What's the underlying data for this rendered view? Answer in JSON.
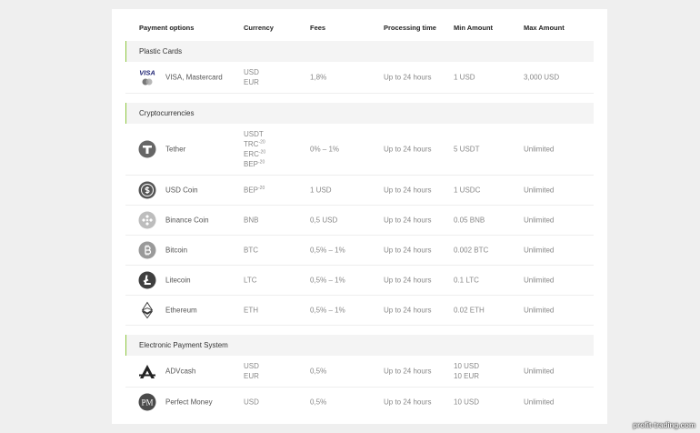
{
  "columns": [
    "Payment options",
    "Currency",
    "Fees",
    "Processing time",
    "Min Amount",
    "Max Amount"
  ],
  "sections": [
    {
      "title": "Plastic Cards",
      "rows": [
        {
          "logo_text": "VISA",
          "name": "VISA, Mastercard",
          "currency": [
            "USD",
            "EUR"
          ],
          "fees": "1,8%",
          "processing": "Up to 24 hours",
          "min": [
            "1 USD"
          ],
          "max": "3,000 USD"
        }
      ]
    },
    {
      "title": "Cryptocurrencies",
      "rows": [
        {
          "name": "Tether",
          "currency": [
            "USDT",
            {
              "code": "TRC",
              "sup": "-20"
            },
            {
              "code": "ERC",
              "sup": "-20"
            },
            {
              "code": "BEP",
              "sup": "-20"
            }
          ],
          "fees": "0% – 1%",
          "processing": "Up to 24 hours",
          "min": [
            "5 USDT"
          ],
          "max": "Unlimited"
        },
        {
          "name": "USD Coin",
          "currency": [
            {
              "code": "BEP",
              "sup": "-20"
            }
          ],
          "fees": "1 USD",
          "processing": "Up to 24 hours",
          "min": [
            "1 USDC"
          ],
          "max": "Unlimited"
        },
        {
          "name": "Binance Coin",
          "currency": [
            "BNB"
          ],
          "fees": "0,5 USD",
          "processing": "Up to 24 hours",
          "min": [
            "0.05 BNB"
          ],
          "max": "Unlimited"
        },
        {
          "name": "Bitcoin",
          "currency": [
            "BTC"
          ],
          "fees": "0,5% – 1%",
          "processing": "Up to 24 hours",
          "min": [
            "0.002 BTC"
          ],
          "max": "Unlimited"
        },
        {
          "name": "Litecoin",
          "currency": [
            "LTC"
          ],
          "fees": "0,5% – 1%",
          "processing": "Up to 24 hours",
          "min": [
            "0.1 LTC"
          ],
          "max": "Unlimited"
        },
        {
          "name": "Ethereum",
          "currency": [
            "ETH"
          ],
          "fees": "0,5% – 1%",
          "processing": "Up to 24 hours",
          "min": [
            "0.02 ETH"
          ],
          "max": "Unlimited"
        }
      ]
    },
    {
      "title": "Electronic Payment System",
      "rows": [
        {
          "name": "ADVcash",
          "currency": [
            "USD",
            "EUR"
          ],
          "fees": "0,5%",
          "processing": "Up to 24 hours",
          "min": [
            "10 USD",
            "10 EUR"
          ],
          "max": "Unlimited"
        },
        {
          "logo_text": "PM",
          "name": "Perfect Money",
          "currency": [
            "USD"
          ],
          "fees": "0,5%",
          "processing": "Up to 24 hours",
          "min": [
            "10 USD"
          ],
          "max": "Unlimited"
        }
      ]
    }
  ],
  "watermark": "profit-trading.com"
}
